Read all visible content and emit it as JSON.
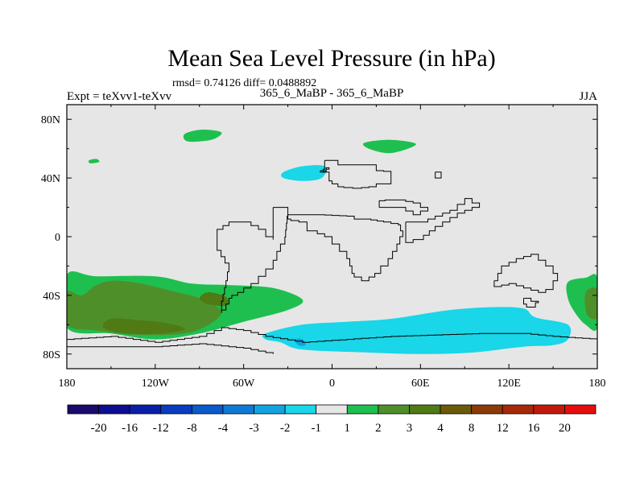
{
  "chart_data": {
    "type": "heatmap",
    "title": "Mean Sea Level Pressure (in hPa)",
    "stats_text": "rmsd= 0.74126 diff= 0.0488892",
    "subtitle_center": "365_6_MaBP - 365_6_MaBP",
    "subtitle_left": "Expt = teXvv1-teXvv",
    "subtitle_right": "JJA",
    "xlim": [
      -180,
      180
    ],
    "ylim": [
      -90,
      90
    ],
    "x_ticks": [
      {
        "value": -180,
        "label": "180"
      },
      {
        "value": -120,
        "label": "120W"
      },
      {
        "value": -60,
        "label": "60W"
      },
      {
        "value": 0,
        "label": "0"
      },
      {
        "value": 60,
        "label": "60E"
      },
      {
        "value": 120,
        "label": "120E"
      },
      {
        "value": 180,
        "label": "180"
      }
    ],
    "y_ticks": [
      {
        "value": 80,
        "label": "80N"
      },
      {
        "value": 40,
        "label": "40N"
      },
      {
        "value": 0,
        "label": "0"
      },
      {
        "value": -40,
        "label": "40S"
      },
      {
        "value": -80,
        "label": "80S"
      }
    ],
    "colorbar": {
      "levels": [
        "-20",
        "-16",
        "-12",
        "-8",
        "-4",
        "-3",
        "-2",
        "-1",
        "1",
        "2",
        "3",
        "4",
        "8",
        "12",
        "16",
        "20"
      ],
      "colors": [
        "#1a0a6b",
        "#0d0d91",
        "#0a1fa8",
        "#0a3cbf",
        "#0b5acc",
        "#0f7ad6",
        "#12a3e0",
        "#19d6e8",
        "#e6e6e6",
        "#1fbf4f",
        "#4f8f2a",
        "#4f7a14",
        "#6b5a0a",
        "#8c3a0a",
        "#a62a0a",
        "#c01a0a",
        "#e60d0d"
      ]
    },
    "background_color": "#e6e6e6",
    "regions": [
      {
        "level": "1 to 2",
        "color": "#1fbf4f",
        "description": "North Pacific high anomaly",
        "points": [
          [
            -100,
            70
          ],
          [
            -88,
            73
          ],
          [
            -75,
            71
          ],
          [
            -82,
            66
          ],
          [
            -98,
            65
          ]
        ]
      },
      {
        "level": "1 to 2",
        "color": "#1fbf4f",
        "description": "Eastern high-latitude anomaly",
        "points": [
          [
            22,
            64
          ],
          [
            40,
            66
          ],
          [
            57,
            63
          ],
          [
            40,
            57
          ],
          [
            25,
            60
          ]
        ]
      },
      {
        "level": "1 to 2",
        "color": "#1fbf4f",
        "description": "Small patch west Pacific",
        "points": [
          [
            -165,
            52
          ],
          [
            -160,
            53
          ],
          [
            -158,
            51
          ],
          [
            -164,
            50
          ]
        ]
      },
      {
        "level": "-2 to -1",
        "color": "#19d6e8",
        "description": "Negative anomaly north mid-latitudes",
        "points": [
          [
            -33,
            44
          ],
          [
            -20,
            48
          ],
          [
            -5,
            48
          ],
          [
            -7,
            40
          ],
          [
            -20,
            38
          ],
          [
            -33,
            40
          ]
        ]
      },
      {
        "level": "1 to 2",
        "color": "#1fbf4f",
        "description": "Southern mid-latitude belt",
        "points": [
          [
            -180,
            -26
          ],
          [
            -160,
            -27
          ],
          [
            -120,
            -27
          ],
          [
            -95,
            -32
          ],
          [
            -70,
            -33
          ],
          [
            -40,
            -35
          ],
          [
            -20,
            -43
          ],
          [
            -30,
            -50
          ],
          [
            -60,
            -58
          ],
          [
            -90,
            -66
          ],
          [
            -120,
            -70
          ],
          [
            -150,
            -66
          ],
          [
            -180,
            -62
          ]
        ]
      },
      {
        "level": "2 to 3",
        "color": "#4f8f2a",
        "description": "Southern belt core",
        "points": [
          [
            -180,
            -38
          ],
          [
            -170,
            -40
          ],
          [
            -160,
            -33
          ],
          [
            -148,
            -30
          ],
          [
            -130,
            -32
          ],
          [
            -105,
            -38
          ],
          [
            -90,
            -42
          ],
          [
            -75,
            -52
          ],
          [
            -95,
            -65
          ],
          [
            -130,
            -67
          ],
          [
            -160,
            -64
          ],
          [
            -180,
            -60
          ]
        ]
      },
      {
        "level": "3 to 4",
        "color": "#4f7a14",
        "description": "Southern belt maximum",
        "points": [
          [
            -150,
            -56
          ],
          [
            -130,
            -57
          ],
          [
            -112,
            -59
          ],
          [
            -100,
            -63
          ],
          [
            -115,
            -66
          ],
          [
            -140,
            -66
          ],
          [
            -155,
            -62
          ]
        ]
      },
      {
        "level": "3 to 4",
        "color": "#4f7a14",
        "description": "Southern belt secondary max",
        "points": [
          [
            -84,
            -38
          ],
          [
            -72,
            -41
          ],
          [
            -72,
            -47
          ],
          [
            -84,
            -46
          ],
          [
            -90,
            -42
          ]
        ]
      },
      {
        "level": "2 to 3",
        "color": "#4f8f2a",
        "description": "Southern belt western edge",
        "points": [
          [
            -180,
            -42
          ],
          [
            -172,
            -45
          ],
          [
            -177,
            -52
          ],
          [
            -180,
            -50
          ]
        ]
      },
      {
        "level": "1 to 2",
        "color": "#1fbf4f",
        "description": "Dateline east patch",
        "points": [
          [
            160,
            -31
          ],
          [
            172,
            -28
          ],
          [
            180,
            -28
          ],
          [
            180,
            -62
          ],
          [
            172,
            -60
          ],
          [
            165,
            -52
          ],
          [
            160,
            -42
          ]
        ]
      },
      {
        "level": "2 to 3",
        "color": "#4f8f2a",
        "description": "Dateline east core",
        "points": [
          [
            172,
            -38
          ],
          [
            180,
            -36
          ],
          [
            180,
            -55
          ],
          [
            173,
            -53
          ]
        ]
      },
      {
        "level": "-2 to -1",
        "color": "#19d6e8",
        "description": "Southern ocean negative anomaly",
        "points": [
          [
            -45,
            -66
          ],
          [
            -20,
            -60
          ],
          [
            10,
            -58
          ],
          [
            40,
            -56
          ],
          [
            80,
            -50
          ],
          [
            110,
            -48
          ],
          [
            130,
            -49
          ],
          [
            138,
            -55
          ],
          [
            160,
            -60
          ],
          [
            160,
            -70
          ],
          [
            150,
            -74
          ],
          [
            130,
            -75
          ],
          [
            95,
            -79
          ],
          [
            60,
            -80
          ],
          [
            25,
            -79
          ],
          [
            -20,
            -77
          ],
          [
            -35,
            -72
          ],
          [
            -45,
            -70
          ]
        ]
      },
      {
        "level": "-3 to -2",
        "color": "#12a3e0",
        "description": "Southern ocean minimum",
        "points": [
          [
            -25,
            -70
          ],
          [
            -20,
            -70
          ],
          [
            -18,
            -74
          ],
          [
            -23,
            -74
          ]
        ]
      }
    ],
    "coastlines": [
      [
        [
          -5,
          52
        ],
        [
          4,
          52
        ],
        [
          4,
          49
        ],
        [
          23,
          49
        ],
        [
          30,
          45
        ],
        [
          40,
          44
        ],
        [
          40,
          36
        ],
        [
          34,
          36
        ],
        [
          30,
          34
        ],
        [
          20,
          33
        ],
        [
          8,
          34
        ],
        [
          0,
          38
        ],
        [
          -2,
          44
        ],
        [
          -6,
          46
        ],
        [
          -5,
          52
        ]
      ],
      [
        [
          -30,
          15
        ],
        [
          -28,
          15
        ],
        [
          -20,
          15
        ],
        [
          -10,
          15
        ],
        [
          10,
          14
        ],
        [
          15,
          12
        ],
        [
          22,
          12
        ],
        [
          35,
          10
        ],
        [
          45,
          8
        ],
        [
          48,
          0
        ],
        [
          44,
          -10
        ],
        [
          38,
          -20
        ],
        [
          33,
          -25
        ],
        [
          25,
          -30
        ],
        [
          15,
          -25
        ],
        [
          12,
          -15
        ],
        [
          10,
          -10
        ],
        [
          5,
          -5
        ],
        [
          0,
          0
        ],
        [
          -10,
          4
        ],
        [
          -17,
          10
        ],
        [
          -28,
          12
        ],
        [
          -30,
          15
        ]
      ],
      [
        [
          32,
          20
        ],
        [
          45,
          20
        ],
        [
          55,
          15
        ],
        [
          65,
          20
        ],
        [
          60,
          23
        ],
        [
          50,
          25
        ],
        [
          40,
          25
        ],
        [
          32,
          24
        ],
        [
          32,
          20
        ]
      ],
      [
        [
          50,
          10
        ],
        [
          60,
          10
        ],
        [
          70,
          14
        ],
        [
          80,
          18
        ],
        [
          90,
          26
        ],
        [
          100,
          20
        ],
        [
          90,
          16
        ],
        [
          80,
          10
        ],
        [
          70,
          4
        ],
        [
          62,
          -2
        ],
        [
          55,
          -4
        ],
        [
          50,
          2
        ],
        [
          50,
          10
        ]
      ],
      [
        [
          -40,
          20
        ],
        [
          -30,
          20
        ],
        [
          -30,
          14
        ],
        [
          -32,
          -5
        ],
        [
          -35,
          -10
        ],
        [
          -40,
          -22
        ],
        [
          -50,
          -32
        ],
        [
          -60,
          -38
        ],
        [
          -68,
          -42
        ],
        [
          -72,
          -50
        ],
        [
          -75,
          -52
        ],
        [
          -75,
          -44
        ],
        [
          -72,
          -30
        ],
        [
          -70,
          -18
        ],
        [
          -78,
          -5
        ],
        [
          -78,
          5
        ],
        [
          -70,
          10
        ],
        [
          -60,
          10
        ],
        [
          -50,
          5
        ],
        [
          -45,
          0
        ],
        [
          -40,
          -2
        ],
        [
          -40,
          10
        ],
        [
          -40,
          20
        ]
      ],
      [
        [
          110,
          -30
        ],
        [
          115,
          -20
        ],
        [
          125,
          -15
        ],
        [
          135,
          -12
        ],
        [
          140,
          -16
        ],
        [
          145,
          -20
        ],
        [
          150,
          -25
        ],
        [
          153,
          -30
        ],
        [
          150,
          -36
        ],
        [
          145,
          -38
        ],
        [
          135,
          -35
        ],
        [
          125,
          -32
        ],
        [
          115,
          -34
        ],
        [
          110,
          -30
        ]
      ],
      [
        [
          130,
          -42
        ],
        [
          135,
          -44
        ],
        [
          140,
          -45
        ],
        [
          138,
          -48
        ],
        [
          132,
          -46
        ],
        [
          130,
          -42
        ]
      ],
      [
        [
          -180,
          -70
        ],
        [
          -150,
          -68
        ],
        [
          -120,
          -72
        ],
        [
          -90,
          -68
        ],
        [
          -75,
          -62
        ],
        [
          -60,
          -64
        ],
        [
          -45,
          -68
        ],
        [
          -20,
          -72
        ],
        [
          10,
          -70
        ],
        [
          40,
          -68
        ],
        [
          70,
          -67
        ],
        [
          100,
          -66
        ],
        [
          130,
          -66
        ],
        [
          150,
          -68
        ],
        [
          180,
          -70
        ]
      ],
      [
        [
          -180,
          -75
        ],
        [
          -120,
          -75
        ],
        [
          -90,
          -73
        ],
        [
          -60,
          -76
        ],
        [
          -40,
          -80
        ]
      ],
      [
        [
          -8,
          45
        ],
        [
          -4,
          47
        ],
        [
          -2,
          46
        ],
        [
          -4,
          44
        ],
        [
          -8,
          45
        ]
      ],
      [
        [
          70,
          44
        ],
        [
          74,
          44
        ],
        [
          74,
          40
        ],
        [
          70,
          40
        ],
        [
          70,
          44
        ]
      ]
    ]
  }
}
